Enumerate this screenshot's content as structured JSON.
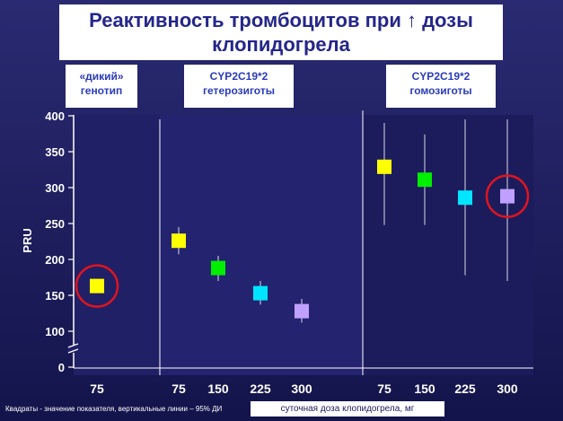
{
  "title": "Реактивность тромбоцитов при ↑ дозы клопидогрела",
  "groups": {
    "wild": [
      "«дикий»",
      "генотип"
    ],
    "het": [
      "CYP2C19*2",
      "гетерозиготы"
    ],
    "hom": [
      "CYP2C19*2",
      "гомозиготы"
    ]
  },
  "footnote": "Квадраты - значение показателя, вертикальные линии – 95% ДИ",
  "colors": {
    "background": "#1a1a5e",
    "title": "#24268a",
    "group_text": "#2a3bb8",
    "highlight_ring": "#e0141e"
  },
  "chart_data": {
    "type": "scatter",
    "title": "",
    "xlabel": "суточная доза клопидогрела, мг",
    "ylabel": "PRU",
    "ylim": [
      0,
      400
    ],
    "axis_break": "between 0 and 100",
    "y_ticks": [
      "0",
      "100",
      "150",
      "200",
      "250",
      "300",
      "350",
      "400"
    ],
    "x_tick_labels": [
      "75",
      "75",
      "150",
      "225",
      "300",
      "75",
      "150",
      "225",
      "300"
    ],
    "grid": false,
    "points": [
      {
        "group": "«дикий» генотип",
        "dose": "75",
        "value": 163,
        "ci": [
          163,
          163
        ],
        "color": "#ffff00",
        "highlighted": true
      },
      {
        "group": "CYP2C19*2 гетерозиготы",
        "dose": "75",
        "value": 226,
        "ci": [
          207,
          245
        ],
        "color": "#ffff00",
        "highlighted": false
      },
      {
        "group": "CYP2C19*2 гетерозиготы",
        "dose": "150",
        "value": 188,
        "ci": [
          170,
          205
        ],
        "color": "#00ee00",
        "highlighted": false
      },
      {
        "group": "CYP2C19*2 гетерозиготы",
        "dose": "225",
        "value": 153,
        "ci": [
          137,
          170
        ],
        "color": "#00e5ff",
        "highlighted": false
      },
      {
        "group": "CYP2C19*2 гетерозиготы",
        "dose": "300",
        "value": 128,
        "ci": [
          112,
          145
        ],
        "color": "#c0a0ff",
        "highlighted": false
      },
      {
        "group": "CYP2C19*2 гомозиготы",
        "dose": "75",
        "value": 329,
        "ci": [
          248,
          390
        ],
        "color": "#ffff00",
        "highlighted": false
      },
      {
        "group": "CYP2C19*2 гомозиготы",
        "dose": "150",
        "value": 311,
        "ci": [
          248,
          374
        ],
        "color": "#00ee00",
        "highlighted": false
      },
      {
        "group": "CYP2C19*2 гомозиготы",
        "dose": "225",
        "value": 286,
        "ci": [
          178,
          395
        ],
        "color": "#00e5ff",
        "highlighted": false
      },
      {
        "group": "CYP2C19*2 гомозиготы",
        "dose": "300",
        "value": 288,
        "ci": [
          170,
          395
        ],
        "color": "#c0a0ff",
        "highlighted": true
      }
    ]
  }
}
